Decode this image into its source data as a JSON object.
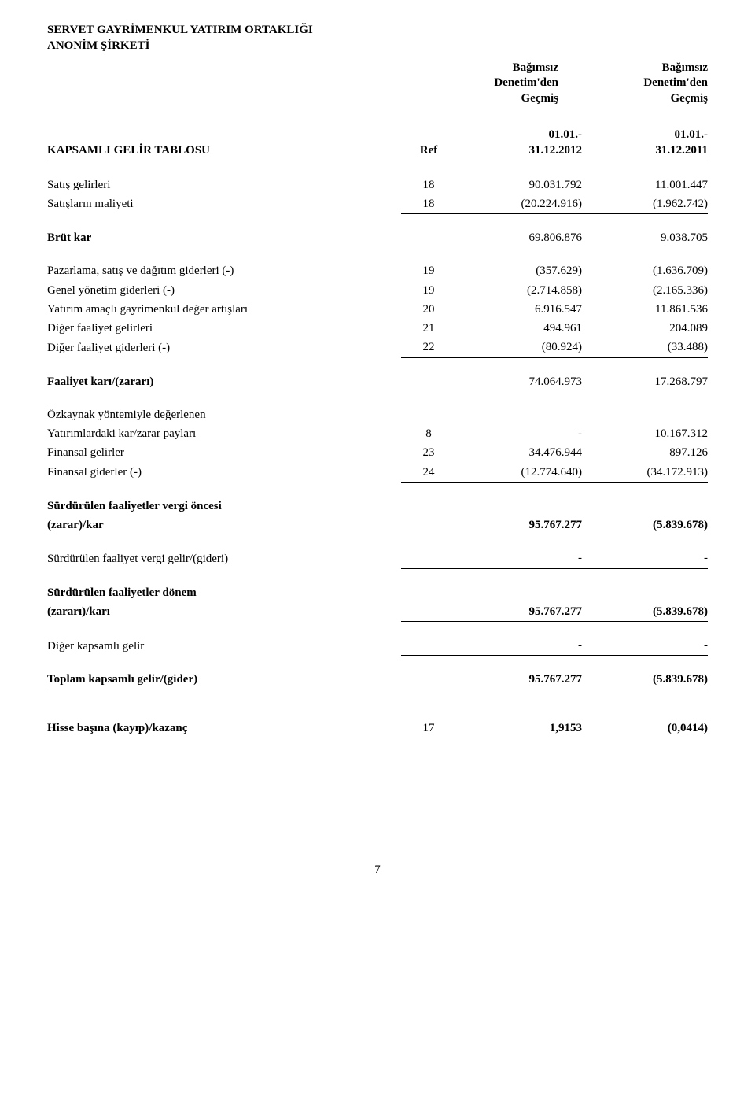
{
  "company_line1": "SERVET GAYRİMENKUL YATIRIM ORTAKLIĞI",
  "company_line2": "ANONİM ŞİRKETİ",
  "audit_header1": "Bağımsız",
  "audit_header2": "Denetim'den",
  "audit_header3": "Geçmiş",
  "table_title": "KAPSAMLI GELİR TABLOSU",
  "ref_label": "Ref",
  "period1_a": "01.01.-",
  "period1_b": "31.12.2012",
  "period2_a": "01.01.-",
  "period2_b": "31.12.2011",
  "rows": {
    "r1": {
      "label": "Satış gelirleri",
      "ref": "18",
      "v1": "90.031.792",
      "v2": "11.001.447"
    },
    "r2": {
      "label": "Satışların maliyeti",
      "ref": "18",
      "v1": "(20.224.916)",
      "v2": "(1.962.742)"
    },
    "r3": {
      "label": "Brüt kar",
      "ref": "",
      "v1": "69.806.876",
      "v2": "9.038.705"
    },
    "r4": {
      "label": "Pazarlama, satış ve dağıtım giderleri (-)",
      "ref": "19",
      "v1": "(357.629)",
      "v2": "(1.636.709)"
    },
    "r5": {
      "label": "Genel yönetim giderleri (-)",
      "ref": "19",
      "v1": "(2.714.858)",
      "v2": "(2.165.336)"
    },
    "r6": {
      "label": "Yatırım amaçlı gayrimenkul değer artışları",
      "ref": "20",
      "v1": "6.916.547",
      "v2": "11.861.536"
    },
    "r7": {
      "label": "Diğer faaliyet gelirleri",
      "ref": "21",
      "v1": "494.961",
      "v2": "204.089"
    },
    "r8": {
      "label": "Diğer faaliyet giderleri (-)",
      "ref": "22",
      "v1": "(80.924)",
      "v2": "(33.488)"
    },
    "r9": {
      "label": "Faaliyet karı/(zararı)",
      "ref": "",
      "v1": "74.064.973",
      "v2": "17.268.797"
    },
    "r10a": {
      "label": "Özkaynak yöntemiyle değerlenen"
    },
    "r10b": {
      "label": "Yatırımlardaki kar/zarar payları",
      "ref": "8",
      "v1": "-",
      "v2": "10.167.312"
    },
    "r11": {
      "label": "Finansal gelirler",
      "ref": "23",
      "v1": "34.476.944",
      "v2": "897.126"
    },
    "r12": {
      "label": "Finansal giderler (-)",
      "ref": "24",
      "v1": "(12.774.640)",
      "v2": "(34.172.913)"
    },
    "r13a": {
      "label": "Sürdürülen faaliyetler vergi öncesi"
    },
    "r13b": {
      "label": "(zarar)/kar",
      "ref": "",
      "v1": "95.767.277",
      "v2": "(5.839.678)"
    },
    "r14": {
      "label": "Sürdürülen faaliyet vergi gelir/(gideri)",
      "ref": "",
      "v1": "-",
      "v2": "-"
    },
    "r15a": {
      "label": "Sürdürülen faaliyetler dönem"
    },
    "r15b": {
      "label": "(zararı)/karı",
      "ref": "",
      "v1": "95.767.277",
      "v2": "(5.839.678)"
    },
    "r16": {
      "label": "Diğer kapsamlı gelir",
      "ref": "",
      "v1": "-",
      "v2": "-"
    },
    "r17": {
      "label": "Toplam kapsamlı gelir/(gider)",
      "ref": "",
      "v1": "95.767.277",
      "v2": "(5.839.678)"
    },
    "r18": {
      "label": "Hisse başına (kayıp)/kazanç",
      "ref": "17",
      "v1": "1,9153",
      "v2": "(0,0414)"
    }
  },
  "page_number": "7"
}
